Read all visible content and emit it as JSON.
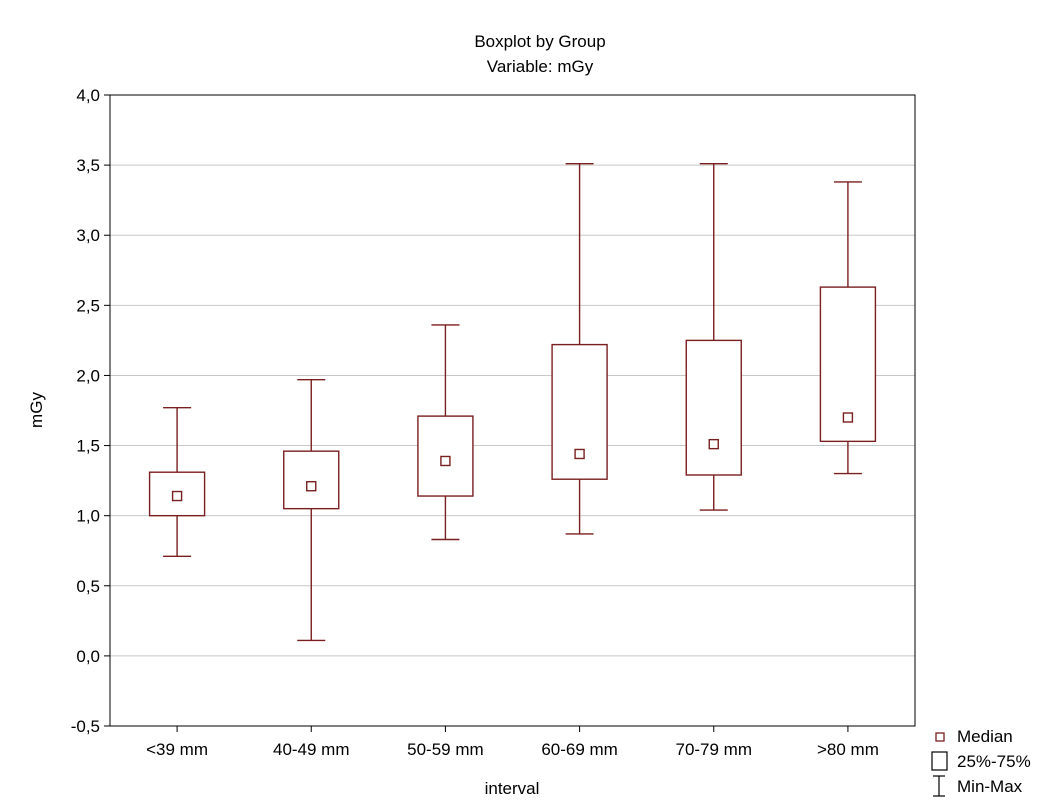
{
  "chart_data": {
    "type": "boxplot",
    "title": "Boxplot by Group",
    "subtitle": "Variable: mGy",
    "xlabel": "interval",
    "ylabel": "mGy",
    "ylim": [
      -0.5,
      4.0
    ],
    "yticks": [
      -0.5,
      0.0,
      0.5,
      1.0,
      1.5,
      2.0,
      2.5,
      3.0,
      3.5,
      4.0
    ],
    "ytick_labels": [
      "-0,5",
      "0,0",
      "0,5",
      "1,0",
      "1,5",
      "2,0",
      "2,5",
      "3,0",
      "3,5",
      "4,0"
    ],
    "grid": "horizontal",
    "categories": [
      "<39 mm",
      "40-49 mm",
      "50-59 mm",
      "60-69 mm",
      "70-79 mm",
      ">80 mm"
    ],
    "groups": [
      {
        "category": "<39 mm",
        "min": 0.71,
        "q1": 1.0,
        "median": 1.14,
        "q3": 1.31,
        "max": 1.77
      },
      {
        "category": "40-49 mm",
        "min": 0.11,
        "q1": 1.05,
        "median": 1.21,
        "q3": 1.46,
        "max": 1.97
      },
      {
        "category": "50-59 mm",
        "min": 0.83,
        "q1": 1.14,
        "median": 1.39,
        "q3": 1.71,
        "max": 2.36
      },
      {
        "category": "60-69 mm",
        "min": 0.87,
        "q1": 1.26,
        "median": 1.44,
        "q3": 2.22,
        "max": 3.51
      },
      {
        "category": "70-79 mm",
        "min": 1.04,
        "q1": 1.29,
        "median": 1.51,
        "q3": 2.25,
        "max": 3.51
      },
      {
        "category": ">80 mm",
        "min": 1.3,
        "q1": 1.53,
        "median": 1.7,
        "q3": 2.63,
        "max": 3.38
      }
    ],
    "legend": {
      "position": "bottom-right",
      "items": [
        {
          "label": "Median",
          "symbol": "median-square-icon"
        },
        {
          "label": "25%-75%",
          "symbol": "box-rect-icon"
        },
        {
          "label": "Min-Max",
          "symbol": "whisker-icon"
        }
      ]
    },
    "colors": {
      "box": "#7a1f1f",
      "grid": "#c8c8c8",
      "frame": "#000000"
    }
  }
}
